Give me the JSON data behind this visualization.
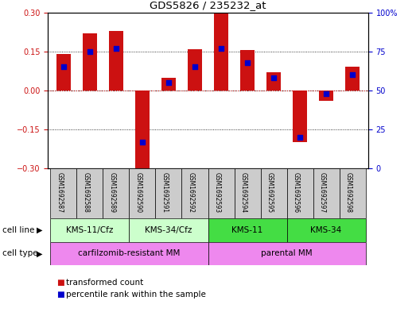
{
  "title": "GDS5826 / 235232_at",
  "samples": [
    "GSM1692587",
    "GSM1692588",
    "GSM1692589",
    "GSM1692590",
    "GSM1692591",
    "GSM1692592",
    "GSM1692593",
    "GSM1692594",
    "GSM1692595",
    "GSM1692596",
    "GSM1692597",
    "GSM1692598"
  ],
  "transformed_count": [
    0.14,
    0.22,
    0.23,
    -0.32,
    0.05,
    0.16,
    0.3,
    0.155,
    0.07,
    -0.2,
    -0.04,
    0.09
  ],
  "percentile_rank": [
    65,
    75,
    77,
    17,
    55,
    65,
    77,
    68,
    58,
    20,
    48,
    60
  ],
  "ylim_left": [
    -0.3,
    0.3
  ],
  "ylim_right": [
    0,
    100
  ],
  "yticks_left": [
    -0.3,
    -0.15,
    0,
    0.15,
    0.3
  ],
  "yticks_right": [
    0,
    25,
    50,
    75,
    100
  ],
  "bar_color": "#cc1111",
  "dot_color": "#0000cc",
  "cell_line_groups": [
    {
      "label": "KMS-11/Cfz",
      "start": 0,
      "end": 3,
      "color": "#ccffcc"
    },
    {
      "label": "KMS-34/Cfz",
      "start": 3,
      "end": 6,
      "color": "#ccffcc"
    },
    {
      "label": "KMS-11",
      "start": 6,
      "end": 9,
      "color": "#44dd44"
    },
    {
      "label": "KMS-34",
      "start": 9,
      "end": 12,
      "color": "#44dd44"
    }
  ],
  "cell_type_groups": [
    {
      "label": "carfilzomib-resistant MM",
      "start": 0,
      "end": 6,
      "color": "#ee88ee"
    },
    {
      "label": "parental MM",
      "start": 6,
      "end": 12,
      "color": "#ee88ee"
    }
  ],
  "legend_items": [
    {
      "label": "transformed count",
      "color": "#cc1111"
    },
    {
      "label": "percentile rank within the sample",
      "color": "#0000cc"
    }
  ],
  "bg_color": "#ffffff",
  "sample_bg_color": "#cccccc"
}
